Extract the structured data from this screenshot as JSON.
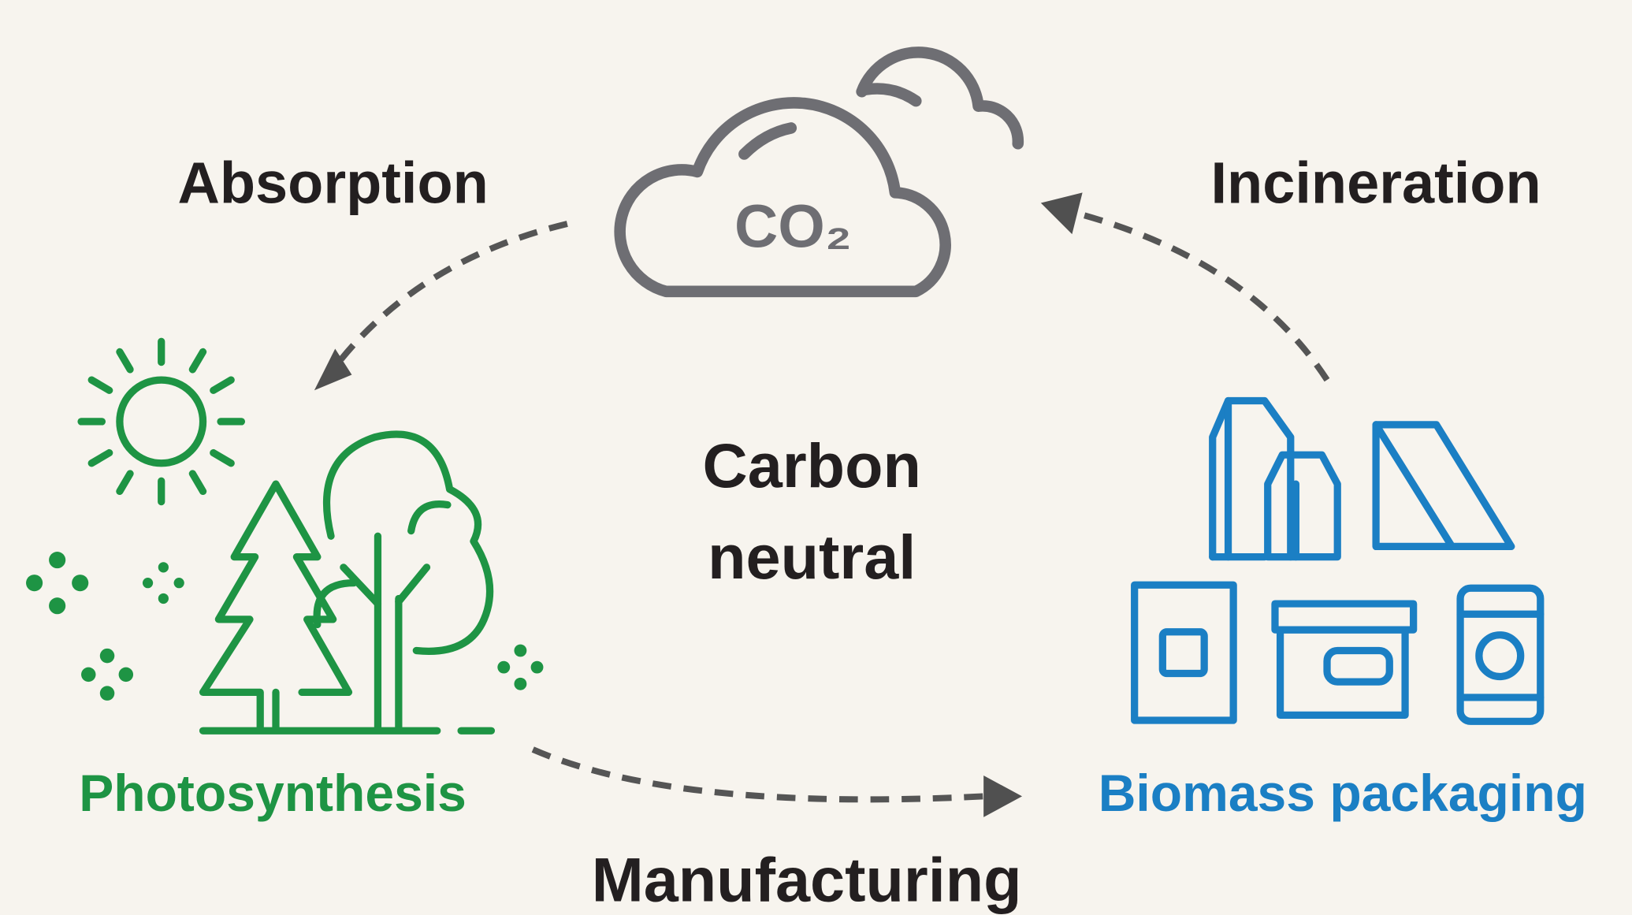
{
  "cycle": {
    "cloud": {
      "label": "CO₂"
    },
    "center": {
      "lines": [
        "Carbon",
        "neutral"
      ]
    },
    "nodes": [
      {
        "label": "Photosynthesis"
      },
      {
        "label": "Biomass packaging"
      }
    ],
    "edges": [
      {
        "label": "Absorption"
      },
      {
        "label": "Incineration"
      },
      {
        "label": "Manufacturing"
      }
    ]
  }
}
